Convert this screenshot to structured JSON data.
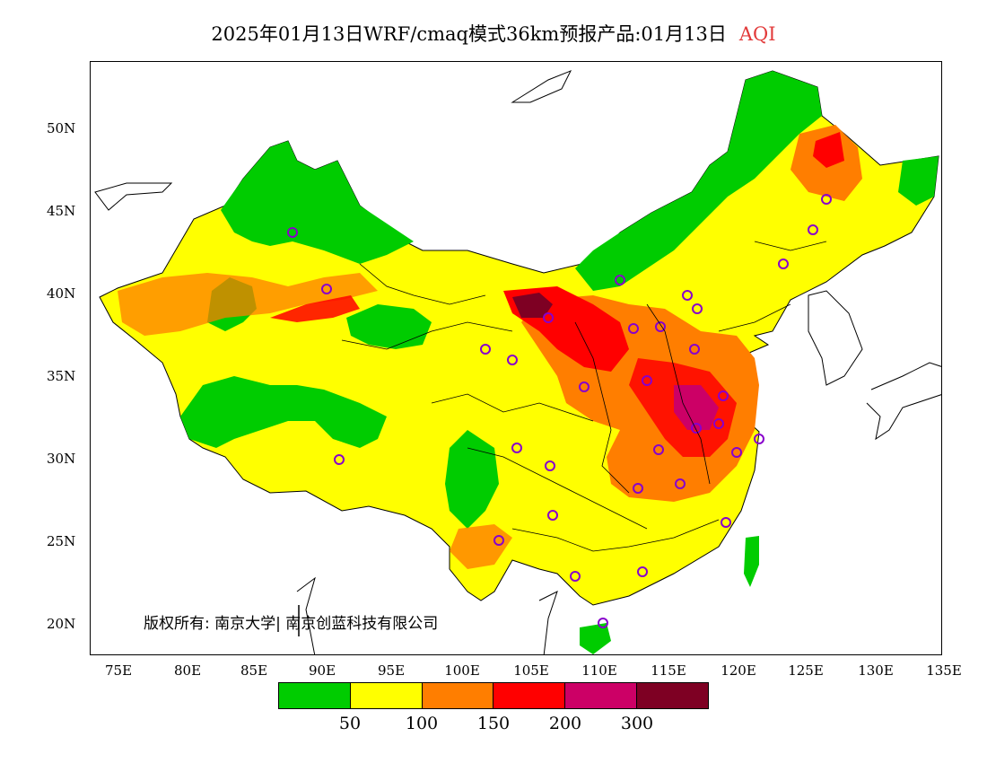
{
  "title": {
    "text": "2025年01月13日WRF/cmaq模式36km预报产品:01月13日",
    "variable": "AQI"
  },
  "axes": {
    "lat_labels": [
      "50N",
      "45N",
      "40N",
      "35N",
      "30N",
      "25N",
      "20N"
    ],
    "lon_labels": [
      "75E",
      "80E",
      "85E",
      "90E",
      "95E",
      "100E",
      "105E",
      "110E",
      "115E",
      "120E",
      "125E",
      "130E",
      "135E"
    ]
  },
  "copyright": "版权所有: 南京大学| 南京创蓝科技有限公司",
  "legend": {
    "colors": [
      "#00cc00",
      "#ffff00",
      "#ff7e00",
      "#ff0000",
      "#cc0066",
      "#7e0023"
    ],
    "thresholds": [
      "50",
      "100",
      "150",
      "200",
      "300"
    ]
  },
  "colors": {
    "good": "#00cc00",
    "moderate": "#ffff00",
    "usg": "#ff7e00",
    "unhealthy": "#ff0000",
    "very_unhealthy": "#cc0066",
    "hazardous": "#7e0023",
    "station_marker": "#8800cc"
  }
}
